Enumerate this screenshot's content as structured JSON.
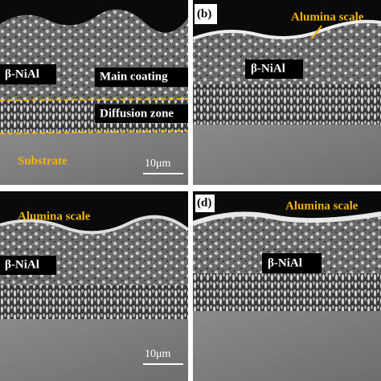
{
  "panels": [
    {
      "phase": "β-NiAl",
      "coating": "Main coating",
      "diffusion": "Diffusion zone",
      "substrate": "Substrate",
      "scale_bar": "10μm"
    },
    {
      "tag": "(b)",
      "scale": "Alumina scale",
      "phase": "β-NiAl"
    },
    {
      "scale": "Alumina scale",
      "phase": "β-NiAl",
      "scale_bar": "10μm"
    },
    {
      "tag": "(d)",
      "scale": "Alumina scale",
      "phase": "β-NiAl"
    }
  ]
}
